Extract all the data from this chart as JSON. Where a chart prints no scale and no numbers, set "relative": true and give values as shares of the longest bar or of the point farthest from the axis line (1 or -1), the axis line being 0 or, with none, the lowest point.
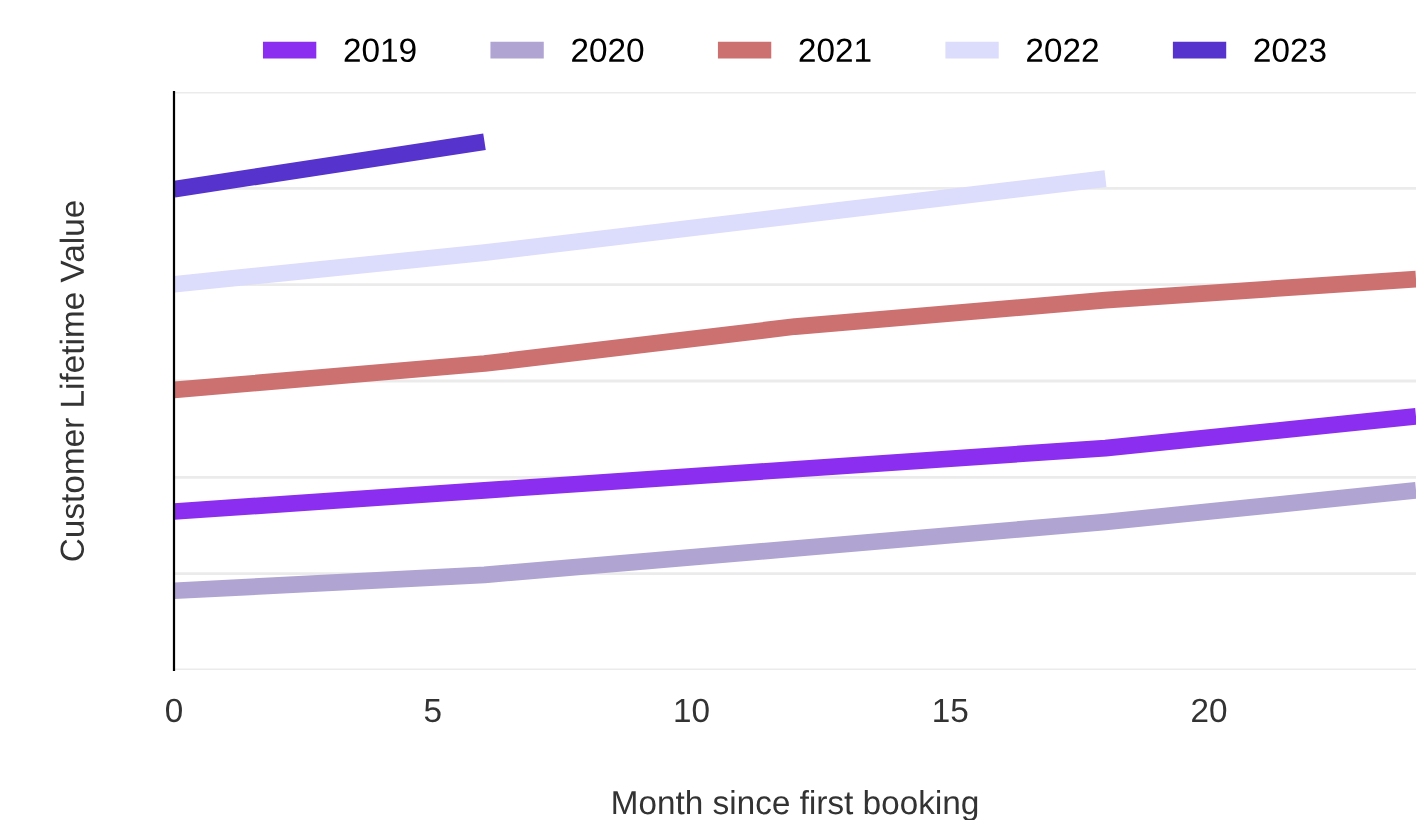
{
  "chart_data": {
    "type": "line",
    "xlabel": "Month since first booking",
    "ylabel": "Customer Lifetime Value",
    "x": [
      0,
      6,
      12,
      18,
      24
    ],
    "xlim": [
      0,
      24
    ],
    "xticks": [
      0,
      5,
      10,
      15,
      20
    ],
    "relative": true,
    "grid": "y",
    "legend": "top",
    "line_style": "solid",
    "series": [
      {
        "name": "2019",
        "color": "#8c2ef0",
        "values": [
          0.3,
          0.34,
          0.38,
          0.42,
          0.48
        ]
      },
      {
        "name": "2020",
        "color": "#b0a4d2",
        "values": [
          0.15,
          0.18,
          0.23,
          0.28,
          0.34
        ]
      },
      {
        "name": "2021",
        "color": "#cc7070",
        "values": [
          0.53,
          0.58,
          0.65,
          0.7,
          0.74
        ]
      },
      {
        "name": "2022",
        "color": "#dcdcfc",
        "values": [
          0.73,
          0.79,
          0.86,
          0.93,
          null
        ]
      },
      {
        "name": "2023",
        "color": "#5533cc",
        "values": [
          0.91,
          1.0,
          null,
          null,
          null
        ]
      }
    ]
  }
}
